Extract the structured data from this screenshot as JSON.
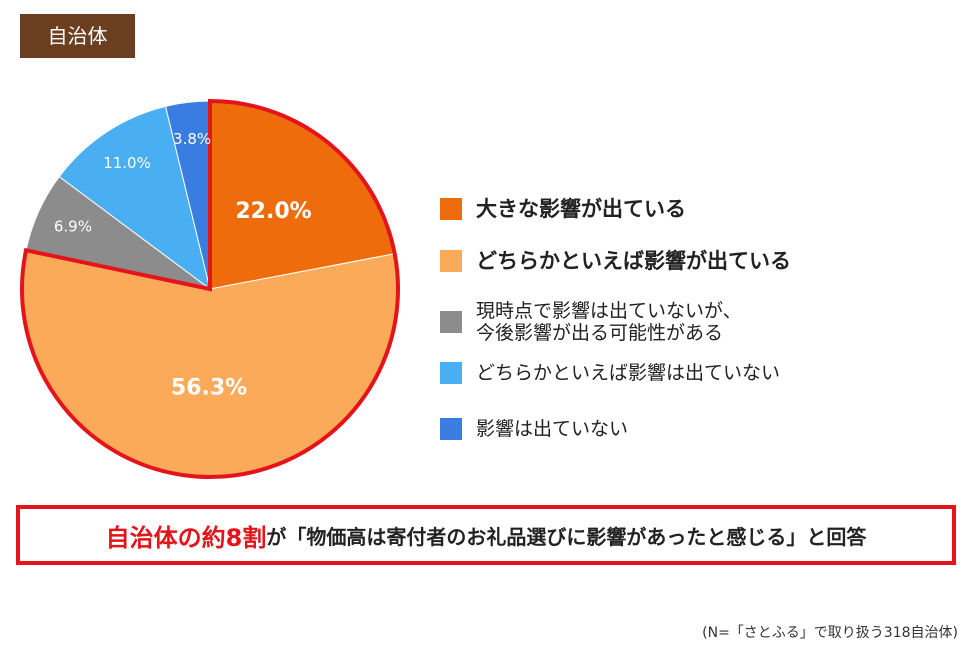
{
  "badge": "自治体",
  "chart_data": {
    "type": "pie",
    "slices": [
      {
        "label": "大きな影響が出ている",
        "value": 22.0,
        "value_label": "22.0%",
        "color": "#ef6c0c",
        "emphasis": true
      },
      {
        "label": "どちらかといえば影響が出ている",
        "value": 56.3,
        "value_label": "56.3%",
        "color": "#fbaa5a",
        "emphasis": true
      },
      {
        "label": "現時点で影響は出ていないが、\n今後影響が出る可能性がある",
        "value": 6.9,
        "value_label": "6.9%",
        "color": "#8c8c8c",
        "emphasis": false
      },
      {
        "label": "どちらかといえば影響は出ていない",
        "value": 11.0,
        "value_label": "11.0%",
        "color": "#49aef2",
        "emphasis": false
      },
      {
        "label": "影響は出ていない",
        "value": 3.8,
        "value_label": "3.8%",
        "color": "#3a7de0",
        "emphasis": false
      }
    ],
    "highlight_color": "#e5141b",
    "legend_position": "right"
  },
  "callout": {
    "highlight": "自治体の約8割",
    "rest": "が「物価高は寄付者のお礼品選びに影響があったと感じる」と回答"
  },
  "footnote": "(N=「さとふる」で取り扱う318自治体)"
}
